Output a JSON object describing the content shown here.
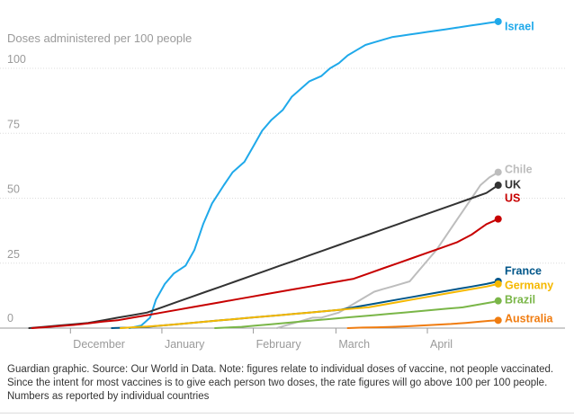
{
  "chart_data": {
    "type": "line",
    "title": "Doses administered per 100 people",
    "ylim": [
      0,
      120
    ],
    "y_ticks": [
      0,
      25,
      50,
      75,
      100
    ],
    "x_ticks": [
      "December",
      "January",
      "February",
      "March",
      "April"
    ],
    "grid": true,
    "legend_placement": "line-end labels on the right",
    "series": [
      {
        "name": "Israel",
        "color": "#1fa9ea",
        "x": [
          -11,
          -7,
          -4,
          -2,
          1,
          4,
          8,
          11,
          14,
          17,
          21,
          24,
          28,
          31,
          34,
          37,
          41,
          44,
          47,
          50,
          54,
          57,
          60,
          63,
          66,
          69,
          72,
          75,
          78,
          81,
          84,
          87,
          90,
          93,
          96,
          99,
          102,
          105,
          108,
          111,
          114
        ],
        "y": [
          0,
          1,
          4,
          11,
          17,
          21,
          24,
          30,
          40,
          48,
          55,
          60,
          64,
          70,
          76,
          80,
          84,
          89,
          92,
          95,
          97,
          100,
          102,
          105,
          107,
          109,
          110,
          111,
          112,
          112.5,
          113,
          113.5,
          114,
          114.5,
          115,
          115.5,
          116,
          116.5,
          117,
          117.5,
          118
        ]
      },
      {
        "name": "Chile",
        "color": "#bdbdbd",
        "x": [
          39,
          42,
          45,
          48,
          51,
          54,
          57,
          60,
          63,
          66,
          69,
          72,
          75,
          78,
          81,
          84,
          87,
          90,
          93,
          96,
          99,
          102,
          105,
          108,
          111,
          114
        ],
        "y": [
          0,
          1,
          2,
          3,
          4,
          4,
          5,
          6,
          8,
          10,
          12,
          14,
          15,
          16,
          17,
          18,
          22,
          26,
          30,
          35,
          40,
          45,
          50,
          55,
          58,
          60
        ]
      },
      {
        "name": "UK",
        "color": "#333333",
        "x": [
          -45,
          -40,
          -35,
          -30,
          -25,
          -20,
          -15,
          -10,
          -5,
          0,
          5,
          10,
          15,
          20,
          25,
          30,
          35,
          40,
          45,
          50,
          55,
          60,
          65,
          70,
          75,
          80,
          85,
          90,
          95,
          100,
          105,
          110,
          114
        ],
        "y": [
          0,
          0.5,
          1,
          1.5,
          2,
          3,
          4,
          5,
          6,
          8,
          10,
          12,
          14,
          16,
          18,
          20,
          22,
          24,
          26,
          28,
          30,
          32,
          34,
          36,
          38,
          40,
          42,
          44,
          46,
          48,
          50,
          52,
          55
        ]
      },
      {
        "name": "US",
        "color": "#c70000",
        "x": [
          -44,
          -40,
          -35,
          -30,
          -25,
          -20,
          -15,
          -10,
          -5,
          0,
          5,
          10,
          15,
          20,
          25,
          30,
          35,
          40,
          45,
          50,
          55,
          60,
          65,
          70,
          75,
          80,
          85,
          90,
          95,
          100,
          105,
          110,
          114
        ],
        "y": [
          0,
          0.3,
          0.8,
          1.2,
          1.8,
          2.5,
          3,
          4,
          5,
          6,
          7,
          8,
          9,
          10,
          11,
          12,
          13,
          14,
          15,
          16,
          17,
          18,
          19,
          21,
          23,
          25,
          27,
          29,
          31,
          33,
          36,
          40,
          42
        ]
      },
      {
        "name": "France",
        "color": "#005689",
        "x": [
          -17,
          -10,
          -5,
          0,
          5,
          10,
          15,
          20,
          25,
          30,
          35,
          40,
          45,
          50,
          55,
          60,
          65,
          70,
          75,
          80,
          85,
          90,
          95,
          100,
          105,
          110,
          114
        ],
        "y": [
          0,
          0.2,
          0.5,
          1,
          1.5,
          2,
          2.5,
          3,
          3.5,
          4,
          4.5,
          5,
          5.5,
          6,
          6.5,
          7,
          8,
          9,
          10,
          11,
          12,
          13,
          14,
          15,
          16,
          17,
          18
        ]
      },
      {
        "name": "Germany",
        "color": "#f5b800",
        "x": [
          -14,
          -10,
          -5,
          0,
          5,
          10,
          15,
          20,
          25,
          30,
          35,
          40,
          45,
          50,
          55,
          60,
          65,
          70,
          75,
          80,
          85,
          90,
          95,
          100,
          105,
          110,
          114
        ],
        "y": [
          0,
          0.3,
          0.6,
          1,
          1.5,
          2,
          2.5,
          3,
          3.5,
          4,
          4.5,
          5,
          5.5,
          6,
          6.5,
          7,
          7.5,
          8,
          9,
          10,
          11,
          12,
          13,
          14,
          15,
          16,
          17
        ]
      },
      {
        "name": "Brazil",
        "color": "#7ab648",
        "x": [
          18,
          22,
          27,
          32,
          37,
          42,
          47,
          52,
          57,
          62,
          67,
          72,
          77,
          82,
          87,
          92,
          97,
          102,
          107,
          112,
          114
        ],
        "y": [
          0,
          0.2,
          0.5,
          1,
          1.5,
          2,
          2.5,
          3,
          3.5,
          4,
          4.5,
          5,
          5.5,
          6,
          6.5,
          7,
          7.5,
          8,
          9,
          10,
          10.5
        ]
      },
      {
        "name": "Australia",
        "color": "#f07c10",
        "x": [
          63,
          68,
          73,
          78,
          83,
          88,
          93,
          98,
          103,
          108,
          111,
          114
        ],
        "y": [
          0,
          0.2,
          0.3,
          0.5,
          0.7,
          1,
          1.3,
          1.6,
          2,
          2.5,
          2.8,
          3
        ]
      }
    ]
  },
  "footnote": "Guardian graphic. Source: Our World in Data. Note: figures relate to individual doses of vaccine, not people vaccinated. Since the intent for most vaccines is to give each person two doses, the rate figures will go above 100 per 100 people. Numbers as reported by individual countries"
}
